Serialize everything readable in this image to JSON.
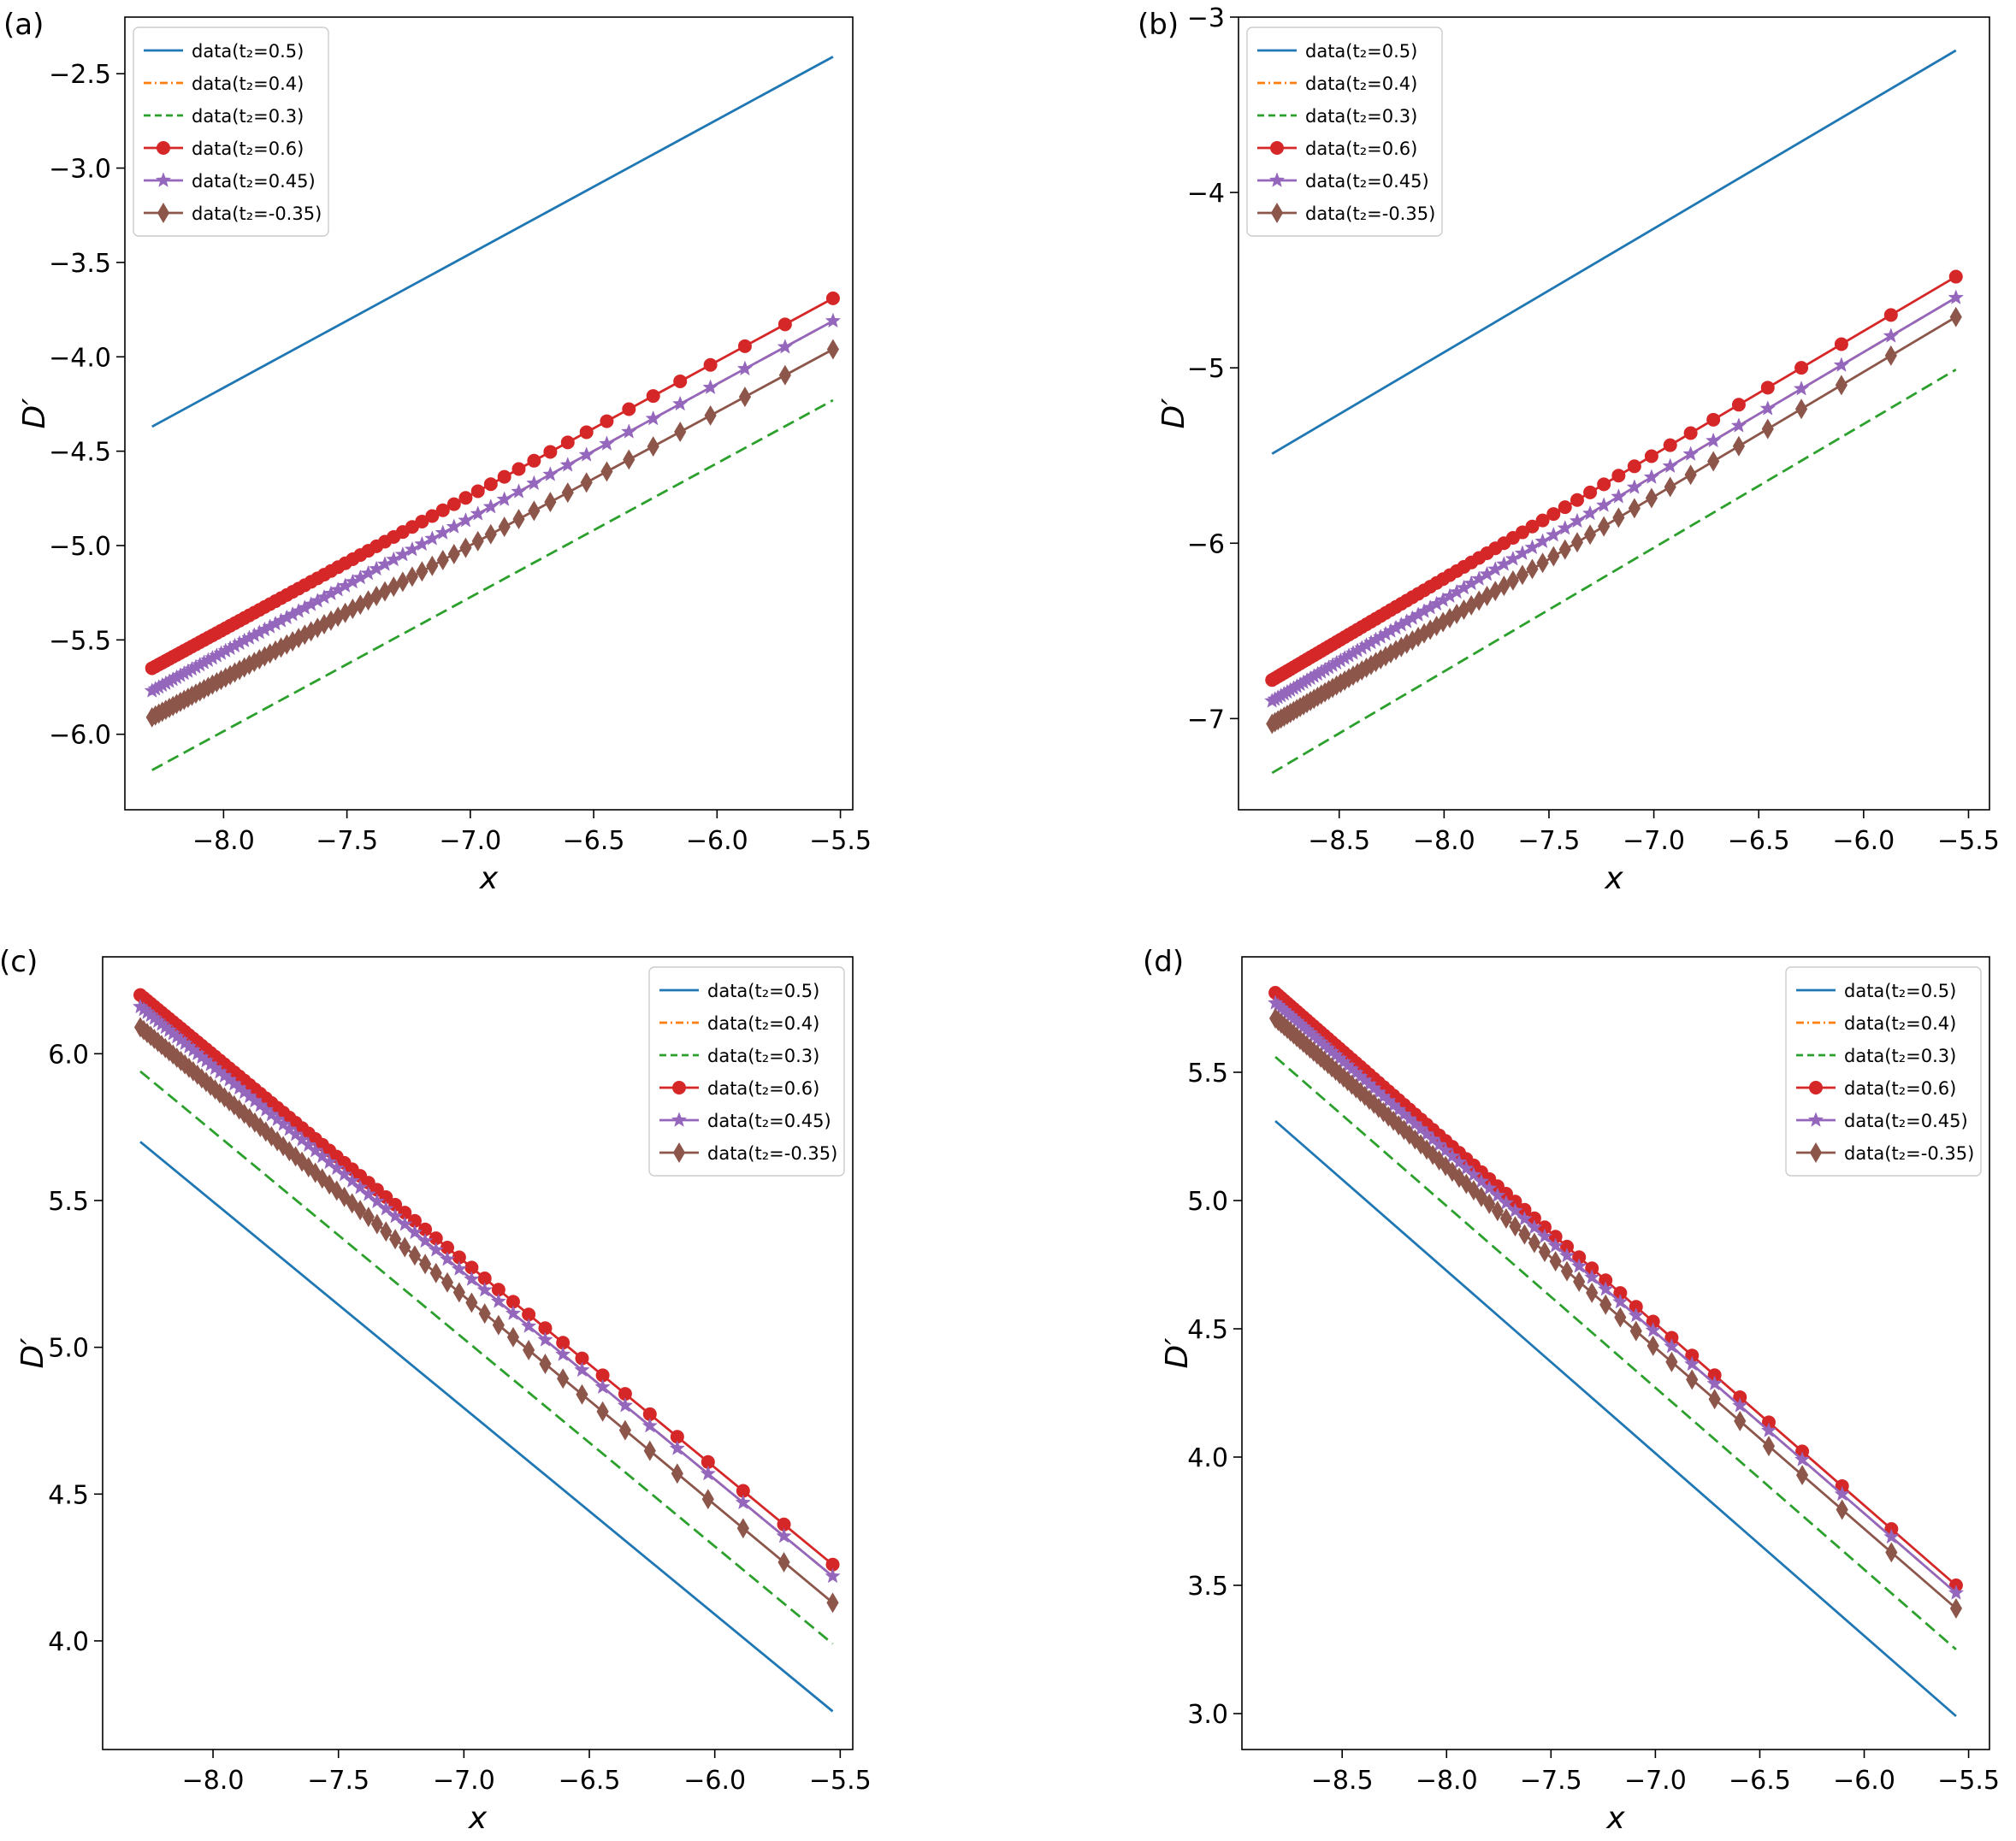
{
  "chart_data": [
    {
      "type": "line",
      "panel_label": "(a)",
      "xlabel": "x",
      "ylabel": "D′",
      "xlim": [
        -8.4,
        -5.45
      ],
      "ylim": [
        -6.4,
        -2.2
      ],
      "xticks": [
        -8.0,
        -7.5,
        -7.0,
        -6.5,
        -6.0,
        -5.5
      ],
      "yticks": [
        -6.0,
        -5.5,
        -5.0,
        -4.5,
        -4.0,
        -3.5,
        -3.0,
        -2.5
      ],
      "xtick_labels": [
        "−8.0",
        "−7.5",
        "−7.0",
        "−6.5",
        "−6.0",
        "−5.5"
      ],
      "ytick_labels": [
        "−6.0",
        "−5.5",
        "−5.0",
        "−4.5",
        "−4.0",
        "−3.5",
        "−3.0",
        "−2.5"
      ],
      "legend_position": "upper-left",
      "x_range": [
        -8.29,
        -5.53
      ],
      "series": [
        {
          "name": "data(t₂=0.5)",
          "color": "#1f77b4",
          "dash": "solid",
          "marker": "none",
          "y_start": -4.37,
          "y_end": -2.41
        },
        {
          "name": "data(t₂=0.4)",
          "color": "#ff7f0e",
          "dash": "dashdot",
          "marker": "none",
          "y_start": -5.77,
          "y_end": -3.81
        },
        {
          "name": "data(t₂=0.3)",
          "color": "#2ca02c",
          "dash": "dashed",
          "marker": "none",
          "y_start": -6.19,
          "y_end": -4.23
        },
        {
          "name": "data(t₂=0.6)",
          "color": "#d62728",
          "dash": "solid",
          "marker": "circle",
          "y_start": -5.65,
          "y_end": -3.69
        },
        {
          "name": "data(t₂=0.45)",
          "color": "#9467bd",
          "dash": "solid",
          "marker": "star",
          "y_start": -5.77,
          "y_end": -3.81
        },
        {
          "name": "data(t₂=-0.35)",
          "color": "#8c564b",
          "dash": "solid",
          "marker": "diamond",
          "y_start": -5.91,
          "y_end": -3.96
        }
      ]
    },
    {
      "type": "line",
      "panel_label": "(b)",
      "xlabel": "x",
      "ylabel": "D′",
      "xlim": [
        -8.98,
        -5.4
      ],
      "ylim": [
        -7.52,
        -3.0
      ],
      "xticks": [
        -8.5,
        -8.0,
        -7.5,
        -7.0,
        -6.5,
        -6.0,
        -5.5
      ],
      "yticks": [
        -7,
        -6,
        -5,
        -4,
        -3
      ],
      "xtick_labels": [
        "−8.5",
        "−8.0",
        "−7.5",
        "−7.0",
        "−6.5",
        "−6.0",
        "−5.5"
      ],
      "ytick_labels": [
        "−7",
        "−6",
        "−5",
        "−4",
        "−3"
      ],
      "legend_position": "upper-left",
      "x_range": [
        -8.82,
        -5.56
      ],
      "series": [
        {
          "name": "data(t₂=0.5)",
          "color": "#1f77b4",
          "dash": "solid",
          "marker": "none",
          "y_start": -5.49,
          "y_end": -3.19
        },
        {
          "name": "data(t₂=0.4)",
          "color": "#ff7f0e",
          "dash": "dashdot",
          "marker": "none",
          "y_start": -6.9,
          "y_end": -4.6
        },
        {
          "name": "data(t₂=0.3)",
          "color": "#2ca02c",
          "dash": "dashed",
          "marker": "none",
          "y_start": -7.31,
          "y_end": -5.01
        },
        {
          "name": "data(t₂=0.6)",
          "color": "#d62728",
          "dash": "solid",
          "marker": "circle",
          "y_start": -6.78,
          "y_end": -4.48
        },
        {
          "name": "data(t₂=0.45)",
          "color": "#9467bd",
          "dash": "solid",
          "marker": "star",
          "y_start": -6.9,
          "y_end": -4.6
        },
        {
          "name": "data(t₂=-0.35)",
          "color": "#8c564b",
          "dash": "solid",
          "marker": "diamond",
          "y_start": -7.03,
          "y_end": -4.71
        }
      ]
    },
    {
      "type": "line",
      "panel_label": "(c)",
      "xlabel": "x",
      "ylabel": "D′",
      "xlim": [
        -8.44,
        -5.45
      ],
      "ylim": [
        3.63,
        6.33
      ],
      "xticks": [
        -8.0,
        -7.5,
        -7.0,
        -6.5,
        -6.0,
        -5.5
      ],
      "yticks": [
        4.0,
        4.5,
        5.0,
        5.5,
        6.0
      ],
      "xtick_labels": [
        "−8.0",
        "−7.5",
        "−7.0",
        "−6.5",
        "−6.0",
        "−5.5"
      ],
      "ytick_labels": [
        "4.0",
        "4.5",
        "5.0",
        "5.5",
        "6.0"
      ],
      "legend_position": "upper-right",
      "x_range": [
        -8.29,
        -5.53
      ],
      "series": [
        {
          "name": "data(t₂=0.5)",
          "color": "#1f77b4",
          "dash": "solid",
          "marker": "none",
          "y_start": 5.7,
          "y_end": 3.76
        },
        {
          "name": "data(t₂=0.4)",
          "color": "#ff7f0e",
          "dash": "dashdot",
          "marker": "none",
          "y_start": 6.16,
          "y_end": 4.22
        },
        {
          "name": "data(t₂=0.3)",
          "color": "#2ca02c",
          "dash": "dashed",
          "marker": "none",
          "y_start": 5.94,
          "y_end": 3.99
        },
        {
          "name": "data(t₂=0.6)",
          "color": "#d62728",
          "dash": "solid",
          "marker": "circle",
          "y_start": 6.2,
          "y_end": 4.26
        },
        {
          "name": "data(t₂=0.45)",
          "color": "#9467bd",
          "dash": "solid",
          "marker": "star",
          "y_start": 6.16,
          "y_end": 4.22
        },
        {
          "name": "data(t₂=-0.35)",
          "color": "#8c564b",
          "dash": "solid",
          "marker": "diamond",
          "y_start": 6.09,
          "y_end": 4.13
        }
      ]
    },
    {
      "type": "line",
      "panel_label": "(d)",
      "xlabel": "x",
      "ylabel": "D′",
      "xlim": [
        -8.98,
        -5.4
      ],
      "ylim": [
        2.86,
        5.95
      ],
      "xticks": [
        -8.5,
        -8.0,
        -7.5,
        -7.0,
        -6.5,
        -6.0,
        -5.5
      ],
      "yticks": [
        3.0,
        3.5,
        4.0,
        4.5,
        5.0,
        5.5
      ],
      "xtick_labels": [
        "−8.5",
        "−8.0",
        "−7.5",
        "−7.0",
        "−6.5",
        "−6.0",
        "−5.5"
      ],
      "ytick_labels": [
        "3.0",
        "3.5",
        "4.0",
        "4.5",
        "5.0",
        "5.5"
      ],
      "legend_position": "upper-right",
      "x_range": [
        -8.82,
        -5.56
      ],
      "series": [
        {
          "name": "data(t₂=0.5)",
          "color": "#1f77b4",
          "dash": "solid",
          "marker": "none",
          "y_start": 5.31,
          "y_end": 2.99
        },
        {
          "name": "data(t₂=0.4)",
          "color": "#ff7f0e",
          "dash": "dashdot",
          "marker": "none",
          "y_start": 5.77,
          "y_end": 3.47
        },
        {
          "name": "data(t₂=0.3)",
          "color": "#2ca02c",
          "dash": "dashed",
          "marker": "none",
          "y_start": 5.56,
          "y_end": 3.25
        },
        {
          "name": "data(t₂=0.6)",
          "color": "#d62728",
          "dash": "solid",
          "marker": "circle",
          "y_start": 5.81,
          "y_end": 3.5
        },
        {
          "name": "data(t₂=0.45)",
          "color": "#9467bd",
          "dash": "solid",
          "marker": "star",
          "y_start": 5.77,
          "y_end": 3.47
        },
        {
          "name": "data(t₂=-0.35)",
          "color": "#8c564b",
          "dash": "solid",
          "marker": "diamond",
          "y_start": 5.71,
          "y_end": 3.41
        }
      ]
    }
  ]
}
